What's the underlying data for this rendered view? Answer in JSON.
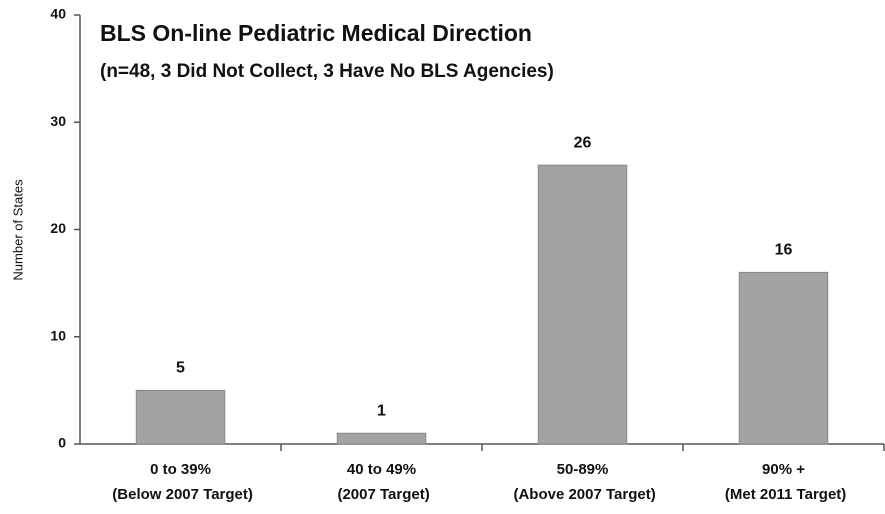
{
  "chart_data": {
    "type": "bar",
    "title": "BLS On-line Pediatric Medical Direction",
    "subtitle": "(n=48, 3 Did Not Collect, 3 Have No BLS Agencies)",
    "y_label": "Number of States",
    "categories": [
      "0 to 39%\n(Below 2007 Target)",
      "40 to 49%\n(2007 Target)",
      "50-89%\n(Above 2007 Target)",
      "90% +\n(Met 2011 Target)"
    ],
    "values": [
      5,
      1,
      26,
      16
    ],
    "color": "#a3a3a3",
    "ylim": [
      0,
      40
    ],
    "yticks": [
      0,
      10,
      20,
      30,
      40
    ],
    "grid": false
  }
}
